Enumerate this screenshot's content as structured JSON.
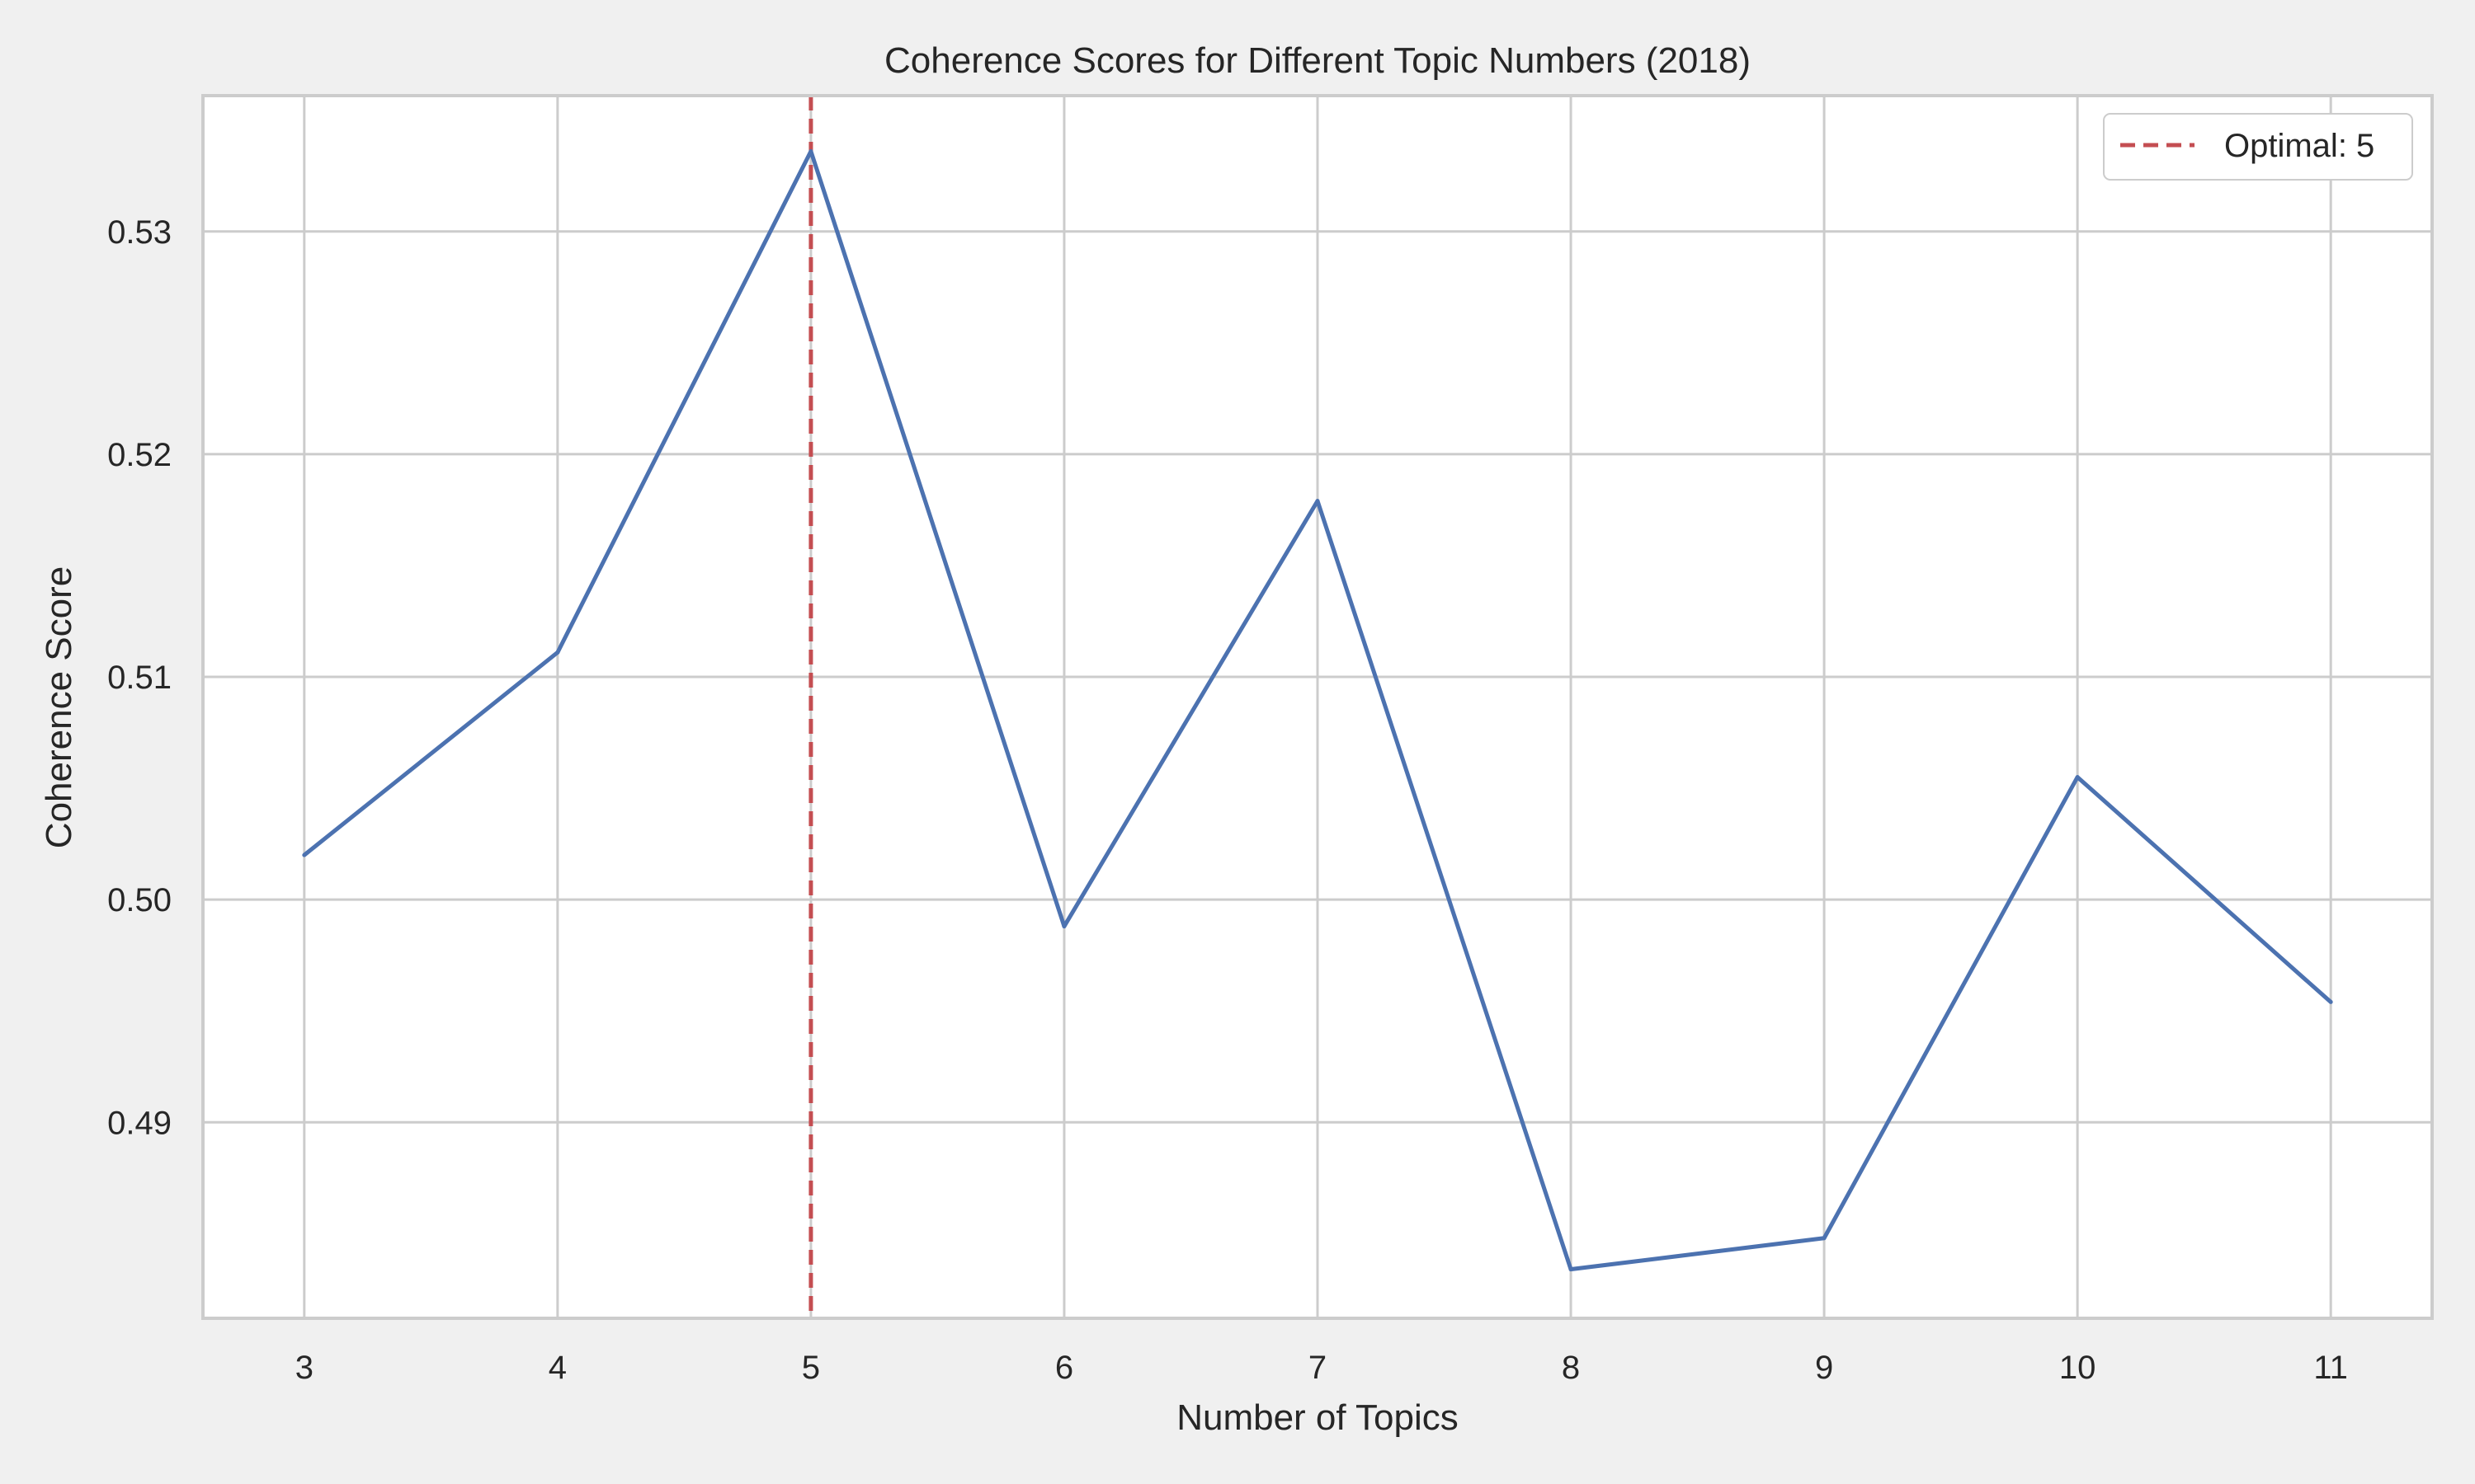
{
  "chart_data": {
    "type": "line",
    "title": "Coherence Scores for Different Topic Numbers (2018)",
    "xlabel": "Number of Topics",
    "ylabel": "Coherence Score",
    "x": [
      3,
      4,
      5,
      6,
      7,
      8,
      9,
      10,
      11
    ],
    "xticks": [
      "3",
      "4",
      "5",
      "6",
      "7",
      "8",
      "9",
      "10",
      "11"
    ],
    "yticks": [
      "0.49",
      "0.50",
      "0.51",
      "0.52",
      "0.53"
    ],
    "ytick_values": [
      0.49,
      0.5,
      0.51,
      0.52,
      0.53
    ],
    "xlim": [
      2.6,
      11.4
    ],
    "ylim": [
      0.4812,
      0.5361
    ],
    "grid": true,
    "series": [
      {
        "values": [
          0.502,
          0.5111,
          0.5336,
          0.4988,
          0.5179,
          0.4834,
          0.4848,
          0.5055,
          0.4954
        ],
        "color": "#4c72b0"
      }
    ],
    "reference_line": {
      "x": 5,
      "color": "#c44e52",
      "style": "dashed"
    },
    "legend": {
      "position": "top-right",
      "entries": [
        {
          "label": "Optimal: 5",
          "color": "#c44e52",
          "style": "dashed"
        }
      ]
    }
  }
}
